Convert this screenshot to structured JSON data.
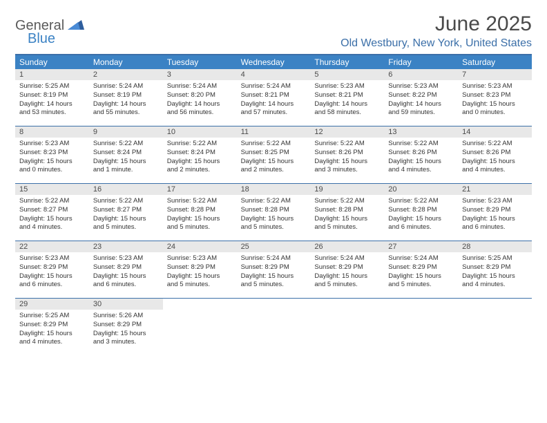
{
  "logo": {
    "general": "General",
    "blue": "Blue"
  },
  "title": "June 2025",
  "location": "Old Westbury, New York, United States",
  "weekdays": [
    "Sunday",
    "Monday",
    "Tuesday",
    "Wednesday",
    "Thursday",
    "Friday",
    "Saturday"
  ],
  "colors": {
    "header_bar": "#3b82c4",
    "border": "#3b6fa8",
    "daynum_bg": "#e8e8e8",
    "text": "#333333",
    "title_text": "#4a4a4a"
  },
  "weeks": [
    [
      {
        "n": "1",
        "sr": "Sunrise: 5:25 AM",
        "ss": "Sunset: 8:19 PM",
        "d1": "Daylight: 14 hours",
        "d2": "and 53 minutes."
      },
      {
        "n": "2",
        "sr": "Sunrise: 5:24 AM",
        "ss": "Sunset: 8:19 PM",
        "d1": "Daylight: 14 hours",
        "d2": "and 55 minutes."
      },
      {
        "n": "3",
        "sr": "Sunrise: 5:24 AM",
        "ss": "Sunset: 8:20 PM",
        "d1": "Daylight: 14 hours",
        "d2": "and 56 minutes."
      },
      {
        "n": "4",
        "sr": "Sunrise: 5:24 AM",
        "ss": "Sunset: 8:21 PM",
        "d1": "Daylight: 14 hours",
        "d2": "and 57 minutes."
      },
      {
        "n": "5",
        "sr": "Sunrise: 5:23 AM",
        "ss": "Sunset: 8:21 PM",
        "d1": "Daylight: 14 hours",
        "d2": "and 58 minutes."
      },
      {
        "n": "6",
        "sr": "Sunrise: 5:23 AM",
        "ss": "Sunset: 8:22 PM",
        "d1": "Daylight: 14 hours",
        "d2": "and 59 minutes."
      },
      {
        "n": "7",
        "sr": "Sunrise: 5:23 AM",
        "ss": "Sunset: 8:23 PM",
        "d1": "Daylight: 15 hours",
        "d2": "and 0 minutes."
      }
    ],
    [
      {
        "n": "8",
        "sr": "Sunrise: 5:23 AM",
        "ss": "Sunset: 8:23 PM",
        "d1": "Daylight: 15 hours",
        "d2": "and 0 minutes."
      },
      {
        "n": "9",
        "sr": "Sunrise: 5:22 AM",
        "ss": "Sunset: 8:24 PM",
        "d1": "Daylight: 15 hours",
        "d2": "and 1 minute."
      },
      {
        "n": "10",
        "sr": "Sunrise: 5:22 AM",
        "ss": "Sunset: 8:24 PM",
        "d1": "Daylight: 15 hours",
        "d2": "and 2 minutes."
      },
      {
        "n": "11",
        "sr": "Sunrise: 5:22 AM",
        "ss": "Sunset: 8:25 PM",
        "d1": "Daylight: 15 hours",
        "d2": "and 2 minutes."
      },
      {
        "n": "12",
        "sr": "Sunrise: 5:22 AM",
        "ss": "Sunset: 8:26 PM",
        "d1": "Daylight: 15 hours",
        "d2": "and 3 minutes."
      },
      {
        "n": "13",
        "sr": "Sunrise: 5:22 AM",
        "ss": "Sunset: 8:26 PM",
        "d1": "Daylight: 15 hours",
        "d2": "and 4 minutes."
      },
      {
        "n": "14",
        "sr": "Sunrise: 5:22 AM",
        "ss": "Sunset: 8:26 PM",
        "d1": "Daylight: 15 hours",
        "d2": "and 4 minutes."
      }
    ],
    [
      {
        "n": "15",
        "sr": "Sunrise: 5:22 AM",
        "ss": "Sunset: 8:27 PM",
        "d1": "Daylight: 15 hours",
        "d2": "and 4 minutes."
      },
      {
        "n": "16",
        "sr": "Sunrise: 5:22 AM",
        "ss": "Sunset: 8:27 PM",
        "d1": "Daylight: 15 hours",
        "d2": "and 5 minutes."
      },
      {
        "n": "17",
        "sr": "Sunrise: 5:22 AM",
        "ss": "Sunset: 8:28 PM",
        "d1": "Daylight: 15 hours",
        "d2": "and 5 minutes."
      },
      {
        "n": "18",
        "sr": "Sunrise: 5:22 AM",
        "ss": "Sunset: 8:28 PM",
        "d1": "Daylight: 15 hours",
        "d2": "and 5 minutes."
      },
      {
        "n": "19",
        "sr": "Sunrise: 5:22 AM",
        "ss": "Sunset: 8:28 PM",
        "d1": "Daylight: 15 hours",
        "d2": "and 5 minutes."
      },
      {
        "n": "20",
        "sr": "Sunrise: 5:22 AM",
        "ss": "Sunset: 8:28 PM",
        "d1": "Daylight: 15 hours",
        "d2": "and 6 minutes."
      },
      {
        "n": "21",
        "sr": "Sunrise: 5:23 AM",
        "ss": "Sunset: 8:29 PM",
        "d1": "Daylight: 15 hours",
        "d2": "and 6 minutes."
      }
    ],
    [
      {
        "n": "22",
        "sr": "Sunrise: 5:23 AM",
        "ss": "Sunset: 8:29 PM",
        "d1": "Daylight: 15 hours",
        "d2": "and 6 minutes."
      },
      {
        "n": "23",
        "sr": "Sunrise: 5:23 AM",
        "ss": "Sunset: 8:29 PM",
        "d1": "Daylight: 15 hours",
        "d2": "and 6 minutes."
      },
      {
        "n": "24",
        "sr": "Sunrise: 5:23 AM",
        "ss": "Sunset: 8:29 PM",
        "d1": "Daylight: 15 hours",
        "d2": "and 5 minutes."
      },
      {
        "n": "25",
        "sr": "Sunrise: 5:24 AM",
        "ss": "Sunset: 8:29 PM",
        "d1": "Daylight: 15 hours",
        "d2": "and 5 minutes."
      },
      {
        "n": "26",
        "sr": "Sunrise: 5:24 AM",
        "ss": "Sunset: 8:29 PM",
        "d1": "Daylight: 15 hours",
        "d2": "and 5 minutes."
      },
      {
        "n": "27",
        "sr": "Sunrise: 5:24 AM",
        "ss": "Sunset: 8:29 PM",
        "d1": "Daylight: 15 hours",
        "d2": "and 5 minutes."
      },
      {
        "n": "28",
        "sr": "Sunrise: 5:25 AM",
        "ss": "Sunset: 8:29 PM",
        "d1": "Daylight: 15 hours",
        "d2": "and 4 minutes."
      }
    ],
    [
      {
        "n": "29",
        "sr": "Sunrise: 5:25 AM",
        "ss": "Sunset: 8:29 PM",
        "d1": "Daylight: 15 hours",
        "d2": "and 4 minutes."
      },
      {
        "n": "30",
        "sr": "Sunrise: 5:26 AM",
        "ss": "Sunset: 8:29 PM",
        "d1": "Daylight: 15 hours",
        "d2": "and 3 minutes."
      },
      null,
      null,
      null,
      null,
      null
    ]
  ]
}
